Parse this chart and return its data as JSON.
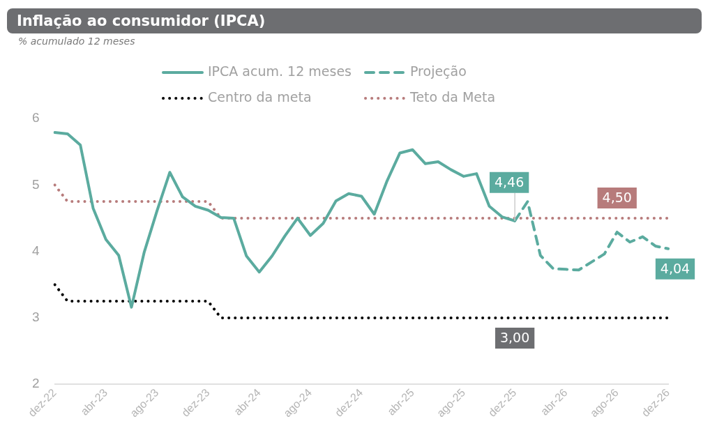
{
  "chart_data": {
    "type": "line",
    "title": "Inflação ao consumidor (IPCA)",
    "subtitle": "% acumulado 12 meses",
    "categories": [
      "dez-22",
      null,
      null,
      null,
      "abr-23",
      null,
      null,
      null,
      "ago-23",
      null,
      null,
      null,
      "dez-23",
      null,
      null,
      null,
      "abr-24",
      null,
      null,
      null,
      "ago-24",
      null,
      null,
      null,
      "dez-24",
      null,
      null,
      null,
      "abr-25",
      null,
      null,
      null,
      "ago-25",
      null,
      null,
      null,
      "dez-25",
      null,
      null,
      null,
      "abr-26",
      null,
      null,
      null,
      "ago-26",
      null,
      null,
      null,
      "dez-26"
    ],
    "ylim": [
      2,
      6
    ],
    "yticks": [
      2,
      3,
      4,
      5,
      6
    ],
    "grid": false,
    "legend": "top",
    "marker": "none",
    "series": [
      {
        "name": "IPCA acum. 12 meses",
        "color": "#5bab9f",
        "line_style": "solid",
        "values": [
          5.79,
          5.77,
          5.6,
          4.65,
          4.18,
          3.94,
          3.16,
          3.99,
          4.61,
          5.19,
          4.82,
          4.68,
          4.62,
          4.51,
          4.5,
          3.93,
          3.69,
          3.93,
          4.23,
          4.5,
          4.24,
          4.42,
          4.76,
          4.87,
          4.83,
          4.56,
          5.06,
          5.48,
          5.53,
          5.32,
          5.35,
          5.23,
          5.13,
          5.17,
          4.68,
          4.52,
          4.46,
          null,
          null,
          null,
          null,
          null,
          null,
          null,
          null,
          null,
          null,
          null,
          null
        ],
        "value_labels": [
          null,
          null,
          null,
          null,
          null,
          null,
          null,
          null,
          null,
          null,
          null,
          null,
          null,
          null,
          null,
          null,
          null,
          null,
          null,
          null,
          null,
          null,
          null,
          null,
          null,
          null,
          null,
          null,
          null,
          null,
          null,
          null,
          null,
          null,
          null,
          null,
          "4,46",
          null,
          null,
          null,
          null,
          null,
          null,
          null,
          null,
          null,
          null,
          null,
          null
        ]
      },
      {
        "name": "Projeção",
        "color": "#5bab9f",
        "line_style": "dashed",
        "values": [
          null,
          null,
          null,
          null,
          null,
          null,
          null,
          null,
          null,
          null,
          null,
          null,
          null,
          null,
          null,
          null,
          null,
          null,
          null,
          null,
          null,
          null,
          null,
          null,
          null,
          null,
          null,
          null,
          null,
          null,
          null,
          null,
          null,
          null,
          null,
          null,
          4.46,
          4.75,
          3.94,
          3.74,
          3.73,
          3.72,
          3.84,
          3.96,
          4.29,
          4.14,
          4.22,
          4.08,
          4.04
        ],
        "value_labels": [
          null,
          null,
          null,
          null,
          null,
          null,
          null,
          null,
          null,
          null,
          null,
          null,
          null,
          null,
          null,
          null,
          null,
          null,
          null,
          null,
          null,
          null,
          null,
          null,
          null,
          null,
          null,
          null,
          null,
          null,
          null,
          null,
          null,
          null,
          null,
          null,
          null,
          null,
          null,
          null,
          null,
          null,
          null,
          null,
          null,
          null,
          null,
          null,
          "4,04"
        ]
      },
      {
        "name": "Centro da meta",
        "color": "#000000",
        "line_style": "dotted",
        "values": [
          3.5,
          3.25,
          3.25,
          3.25,
          3.25,
          3.25,
          3.25,
          3.25,
          3.25,
          3.25,
          3.25,
          3.25,
          3.25,
          3,
          3,
          3,
          3,
          3,
          3,
          3,
          3,
          3,
          3,
          3,
          3,
          3,
          3,
          3,
          3,
          3,
          3,
          3,
          3,
          3,
          3,
          3,
          3,
          3,
          3,
          3,
          3,
          3,
          3,
          3,
          3,
          3,
          3,
          3,
          3
        ],
        "value_labels": [
          null,
          null,
          null,
          null,
          null,
          null,
          null,
          null,
          null,
          null,
          null,
          null,
          null,
          null,
          null,
          null,
          null,
          null,
          null,
          null,
          null,
          null,
          null,
          null,
          null,
          null,
          null,
          null,
          null,
          null,
          null,
          null,
          null,
          null,
          null,
          null,
          "3,00",
          null,
          null,
          null,
          null,
          null,
          null,
          null,
          null,
          null,
          null,
          null,
          null
        ]
      },
      {
        "name": "Teto da Meta",
        "color": "#b77b7b",
        "line_style": "dotted",
        "values": [
          5,
          4.75,
          4.75,
          4.75,
          4.75,
          4.75,
          4.75,
          4.75,
          4.75,
          4.75,
          4.75,
          4.75,
          4.75,
          4.5,
          4.5,
          4.5,
          4.5,
          4.5,
          4.5,
          4.5,
          4.5,
          4.5,
          4.5,
          4.5,
          4.5,
          4.5,
          4.5,
          4.5,
          4.5,
          4.5,
          4.5,
          4.5,
          4.5,
          4.5,
          4.5,
          4.5,
          4.5,
          4.5,
          4.5,
          4.5,
          4.5,
          4.5,
          4.5,
          4.5,
          4.5,
          4.5,
          4.5,
          4.5,
          4.5
        ],
        "value_labels": [
          null,
          null,
          null,
          null,
          null,
          null,
          null,
          null,
          null,
          null,
          null,
          null,
          null,
          null,
          null,
          null,
          null,
          null,
          null,
          null,
          null,
          null,
          null,
          null,
          null,
          null,
          null,
          null,
          null,
          null,
          null,
          null,
          null,
          null,
          null,
          null,
          null,
          null,
          null,
          null,
          null,
          null,
          null,
          null,
          "4,50",
          null,
          null,
          null,
          null
        ]
      }
    ]
  }
}
